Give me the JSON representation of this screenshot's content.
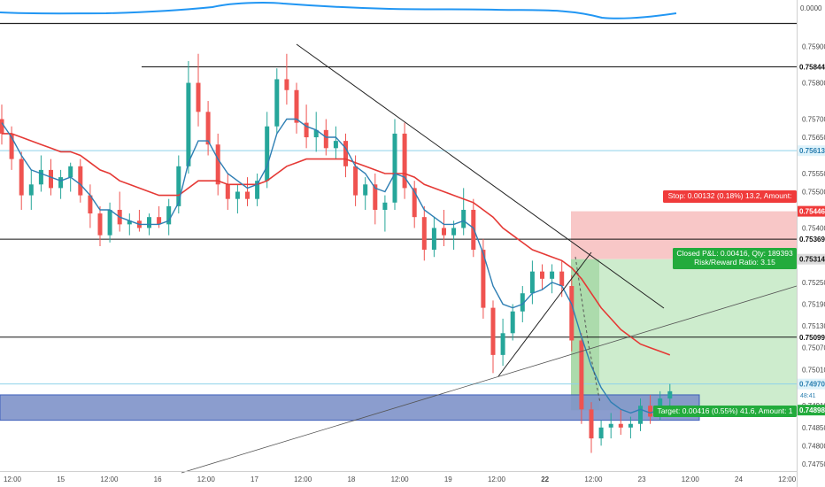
{
  "colors": {
    "up": "#26a69a",
    "down": "#ef5350",
    "ema_fast": "#2f7fb4",
    "ema_slow": "#e53935",
    "oscillator": "#2196f3",
    "stop_fill": "#f8c7c7",
    "target_fill": "#cdeccd",
    "zone_fill": "#7f93c9",
    "label_green": "#22ab3c",
    "label_red": "#f03b3b",
    "axis_text": "#4a4a4a"
  },
  "oscillator": {
    "value_label": "0.0000"
  },
  "chart_data": {
    "type": "candlestick",
    "symbol_scale": "price",
    "ylim": [
      0.7473,
      0.7596
    ],
    "y_ticks": [
      "0.75900",
      "0.75800",
      "0.75700",
      "0.75650",
      "0.75550",
      "0.75500",
      "0.75400",
      "0.75250",
      "0.75190",
      "0.75130",
      "0.75070",
      "0.75010",
      "0.74910",
      "0.74850",
      "0.74800",
      "0.74750"
    ],
    "x_ticks": [
      "12:00",
      "15",
      "12:00",
      "16",
      "12:00",
      "17",
      "12:00",
      "18",
      "12:00",
      "19",
      "12:00",
      "22",
      "12:00",
      "23",
      "12:00",
      "24",
      "12:00"
    ],
    "candles": [
      {
        "o": 0.757,
        "h": 0.7574,
        "l": 0.7563,
        "c": 0.7566
      },
      {
        "o": 0.7566,
        "h": 0.7568,
        "l": 0.7556,
        "c": 0.7559
      },
      {
        "o": 0.7559,
        "h": 0.7561,
        "l": 0.7545,
        "c": 0.7549
      },
      {
        "o": 0.7549,
        "h": 0.7556,
        "l": 0.7545,
        "c": 0.7552
      },
      {
        "o": 0.7552,
        "h": 0.756,
        "l": 0.755,
        "c": 0.7556
      },
      {
        "o": 0.7556,
        "h": 0.7559,
        "l": 0.7549,
        "c": 0.7551
      },
      {
        "o": 0.7551,
        "h": 0.7556,
        "l": 0.7548,
        "c": 0.7554
      },
      {
        "o": 0.7554,
        "h": 0.7558,
        "l": 0.755,
        "c": 0.7557
      },
      {
        "o": 0.7557,
        "h": 0.7559,
        "l": 0.7547,
        "c": 0.7549
      },
      {
        "o": 0.7549,
        "h": 0.7552,
        "l": 0.754,
        "c": 0.7544
      },
      {
        "o": 0.7544,
        "h": 0.7546,
        "l": 0.7535,
        "c": 0.7538
      },
      {
        "o": 0.7538,
        "h": 0.7547,
        "l": 0.7536,
        "c": 0.7545
      },
      {
        "o": 0.7545,
        "h": 0.755,
        "l": 0.7539,
        "c": 0.7541
      },
      {
        "o": 0.7541,
        "h": 0.7544,
        "l": 0.7538,
        "c": 0.7542
      },
      {
        "o": 0.7542,
        "h": 0.7545,
        "l": 0.7539,
        "c": 0.754
      },
      {
        "o": 0.754,
        "h": 0.7544,
        "l": 0.7538,
        "c": 0.7543
      },
      {
        "o": 0.7543,
        "h": 0.7546,
        "l": 0.754,
        "c": 0.7541
      },
      {
        "o": 0.7541,
        "h": 0.7548,
        "l": 0.7538,
        "c": 0.7546
      },
      {
        "o": 0.7546,
        "h": 0.756,
        "l": 0.7544,
        "c": 0.7557
      },
      {
        "o": 0.7557,
        "h": 0.7586,
        "l": 0.7555,
        "c": 0.758
      },
      {
        "o": 0.758,
        "h": 0.7588,
        "l": 0.7568,
        "c": 0.7572
      },
      {
        "o": 0.7572,
        "h": 0.7575,
        "l": 0.756,
        "c": 0.7563
      },
      {
        "o": 0.7563,
        "h": 0.7566,
        "l": 0.7549,
        "c": 0.7552
      },
      {
        "o": 0.7552,
        "h": 0.7555,
        "l": 0.7545,
        "c": 0.7548
      },
      {
        "o": 0.7548,
        "h": 0.7552,
        "l": 0.7544,
        "c": 0.755
      },
      {
        "o": 0.755,
        "h": 0.7554,
        "l": 0.7546,
        "c": 0.7548
      },
      {
        "o": 0.7548,
        "h": 0.7555,
        "l": 0.7546,
        "c": 0.7553
      },
      {
        "o": 0.7553,
        "h": 0.7572,
        "l": 0.7551,
        "c": 0.7568
      },
      {
        "o": 0.7568,
        "h": 0.7584,
        "l": 0.7566,
        "c": 0.7581
      },
      {
        "o": 0.7581,
        "h": 0.7588,
        "l": 0.7574,
        "c": 0.7578
      },
      {
        "o": 0.7578,
        "h": 0.758,
        "l": 0.7566,
        "c": 0.7569
      },
      {
        "o": 0.7569,
        "h": 0.7574,
        "l": 0.7562,
        "c": 0.7565
      },
      {
        "o": 0.7565,
        "h": 0.7572,
        "l": 0.7561,
        "c": 0.7567
      },
      {
        "o": 0.7567,
        "h": 0.757,
        "l": 0.756,
        "c": 0.7562
      },
      {
        "o": 0.7562,
        "h": 0.7568,
        "l": 0.7559,
        "c": 0.7564
      },
      {
        "o": 0.7564,
        "h": 0.7566,
        "l": 0.7554,
        "c": 0.7557
      },
      {
        "o": 0.7557,
        "h": 0.756,
        "l": 0.7546,
        "c": 0.7549
      },
      {
        "o": 0.7549,
        "h": 0.7554,
        "l": 0.7545,
        "c": 0.7552
      },
      {
        "o": 0.7552,
        "h": 0.7555,
        "l": 0.7541,
        "c": 0.7545
      },
      {
        "o": 0.7545,
        "h": 0.7549,
        "l": 0.7539,
        "c": 0.7547
      },
      {
        "o": 0.7547,
        "h": 0.757,
        "l": 0.7545,
        "c": 0.7566
      },
      {
        "o": 0.7566,
        "h": 0.7569,
        "l": 0.7548,
        "c": 0.7551
      },
      {
        "o": 0.7551,
        "h": 0.7553,
        "l": 0.754,
        "c": 0.7543
      },
      {
        "o": 0.7543,
        "h": 0.7546,
        "l": 0.7531,
        "c": 0.7534
      },
      {
        "o": 0.7534,
        "h": 0.7543,
        "l": 0.7532,
        "c": 0.754
      },
      {
        "o": 0.754,
        "h": 0.7545,
        "l": 0.7535,
        "c": 0.7538
      },
      {
        "o": 0.7538,
        "h": 0.7542,
        "l": 0.7534,
        "c": 0.754
      },
      {
        "o": 0.754,
        "h": 0.7551,
        "l": 0.7538,
        "c": 0.7545
      },
      {
        "o": 0.7545,
        "h": 0.7548,
        "l": 0.7532,
        "c": 0.7534
      },
      {
        "o": 0.7534,
        "h": 0.7537,
        "l": 0.7515,
        "c": 0.7518
      },
      {
        "o": 0.7518,
        "h": 0.752,
        "l": 0.75,
        "c": 0.7505
      },
      {
        "o": 0.7505,
        "h": 0.7515,
        "l": 0.7502,
        "c": 0.7511
      },
      {
        "o": 0.7511,
        "h": 0.7519,
        "l": 0.7509,
        "c": 0.7517
      },
      {
        "o": 0.7517,
        "h": 0.7524,
        "l": 0.7514,
        "c": 0.7522
      },
      {
        "o": 0.7522,
        "h": 0.7531,
        "l": 0.7519,
        "c": 0.7528
      },
      {
        "o": 0.7528,
        "h": 0.753,
        "l": 0.7523,
        "c": 0.7526
      },
      {
        "o": 0.7526,
        "h": 0.753,
        "l": 0.7522,
        "c": 0.7528
      },
      {
        "o": 0.7528,
        "h": 0.7531,
        "l": 0.7521,
        "c": 0.7524
      },
      {
        "o": 0.7524,
        "h": 0.7527,
        "l": 0.7506,
        "c": 0.7509
      },
      {
        "o": 0.7509,
        "h": 0.7511,
        "l": 0.7486,
        "c": 0.749
      },
      {
        "o": 0.749,
        "h": 0.7492,
        "l": 0.7478,
        "c": 0.7482
      },
      {
        "o": 0.7482,
        "h": 0.7487,
        "l": 0.748,
        "c": 0.7485
      },
      {
        "o": 0.7485,
        "h": 0.7489,
        "l": 0.7482,
        "c": 0.7486
      },
      {
        "o": 0.7486,
        "h": 0.749,
        "l": 0.7483,
        "c": 0.7485
      },
      {
        "o": 0.7485,
        "h": 0.7488,
        "l": 0.7482,
        "c": 0.7486
      },
      {
        "o": 0.7486,
        "h": 0.7493,
        "l": 0.7484,
        "c": 0.7491
      },
      {
        "o": 0.7491,
        "h": 0.7494,
        "l": 0.7486,
        "c": 0.7488
      },
      {
        "o": 0.7488,
        "h": 0.7495,
        "l": 0.7487,
        "c": 0.7493
      },
      {
        "o": 0.7493,
        "h": 0.7497,
        "l": 0.749,
        "c": 0.7495
      }
    ],
    "ema_fast": [
      0.7569,
      0.7565,
      0.756,
      0.7556,
      0.7555,
      0.7554,
      0.7553,
      0.7554,
      0.7552,
      0.7549,
      0.7545,
      0.7545,
      0.7543,
      0.7542,
      0.7541,
      0.7541,
      0.7541,
      0.7542,
      0.7547,
      0.7558,
      0.7564,
      0.7564,
      0.7559,
      0.7555,
      0.7553,
      0.7551,
      0.7552,
      0.7557,
      0.7566,
      0.757,
      0.757,
      0.7568,
      0.7567,
      0.7565,
      0.7565,
      0.7562,
      0.7557,
      0.7555,
      0.7551,
      0.755,
      0.7555,
      0.7554,
      0.755,
      0.7545,
      0.7543,
      0.7541,
      0.7541,
      0.7542,
      0.754,
      0.7533,
      0.7524,
      0.7519,
      0.7518,
      0.7519,
      0.7522,
      0.7523,
      0.7525,
      0.7524,
      0.7519,
      0.751,
      0.7502,
      0.7496,
      0.7492,
      0.749,
      0.7489,
      0.749,
      0.7489,
      0.749,
      0.7491
    ],
    "ema_slow": [
      0.7566,
      0.7566,
      0.7565,
      0.7564,
      0.7563,
      0.7562,
      0.7561,
      0.7561,
      0.756,
      0.7558,
      0.7556,
      0.7555,
      0.7553,
      0.7552,
      0.7551,
      0.755,
      0.7549,
      0.7549,
      0.7549,
      0.7551,
      0.7553,
      0.7553,
      0.7553,
      0.7552,
      0.7552,
      0.7552,
      0.7552,
      0.7553,
      0.7555,
      0.7557,
      0.7558,
      0.7559,
      0.7559,
      0.7559,
      0.7559,
      0.7559,
      0.7558,
      0.7557,
      0.7556,
      0.7555,
      0.7555,
      0.7555,
      0.7554,
      0.7552,
      0.7551,
      0.755,
      0.7549,
      0.7548,
      0.7547,
      0.7545,
      0.7543,
      0.754,
      0.7538,
      0.7536,
      0.7534,
      0.7533,
      0.7532,
      0.7531,
      0.7529,
      0.7526,
      0.7522,
      0.7518,
      0.7515,
      0.7512,
      0.751,
      0.7508,
      0.7507,
      0.7506,
      0.7505
    ],
    "horizontal_levels": [
      {
        "price": 0.75844,
        "label": "0.75844",
        "style": "dark"
      },
      {
        "price": 0.75613,
        "label": "0.75613",
        "style": "light"
      },
      {
        "price": 0.75369,
        "label": "0.75369",
        "style": "dark"
      },
      {
        "price": 0.75099,
        "label": "0.75099",
        "style": "dark"
      },
      {
        "price": 0.7497,
        "label": "0.74970",
        "style": "light"
      }
    ],
    "position": {
      "entry": 0.75314,
      "stop": 0.75446,
      "target": 0.74898,
      "entry_label": "0.75314",
      "stop_label": "0.75446",
      "target_label": "0.74898",
      "stop_text": "Stop: 0.00132 (0.18%) 13.2, Amount:",
      "pnl_text": "Closed P&L: 0.00416, Qty: 189393",
      "rr_text": "Risk/Reward Ratio: 3.15",
      "target_text": "Target: 0.00416 (0.55%) 41.6, Amount: 1"
    },
    "support_zone": {
      "top": 0.7494,
      "bottom": 0.7487
    },
    "current_price_labels": [
      "0.74970",
      "48:41"
    ]
  }
}
